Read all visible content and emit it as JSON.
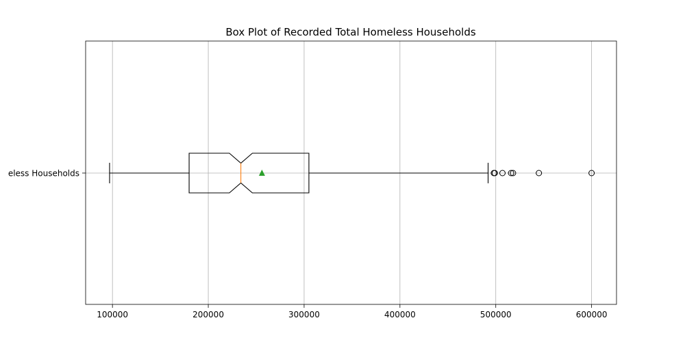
{
  "chart_data": {
    "type": "boxplot",
    "orientation": "horizontal",
    "notched": true,
    "show_mean": true,
    "title": "Box Plot of Recorded Total Homeless Households",
    "xlabel": "",
    "ylabel": "",
    "category": "Recorded Total Homeless Households",
    "category_label_visible": "eless Households",
    "xlim": [
      72000,
      626000
    ],
    "xticks": [
      100000,
      200000,
      300000,
      400000,
      500000,
      600000
    ],
    "xtick_labels": [
      "100000",
      "200000",
      "300000",
      "400000",
      "500000",
      "600000"
    ],
    "grid": true,
    "stats": {
      "whisker_low": 97000,
      "q1": 180000,
      "median": 234000,
      "q3": 305000,
      "whisker_high": 492000,
      "mean": 256000,
      "notch_low": 222000,
      "notch_high": 246000
    },
    "fliers": [
      498000,
      499000,
      507000,
      516000,
      518000,
      545000,
      600000
    ],
    "colors": {
      "median": "#ff7f0e",
      "mean_marker": "#2ca02c",
      "box": "#000000",
      "grid": "#b0b0b0"
    }
  }
}
